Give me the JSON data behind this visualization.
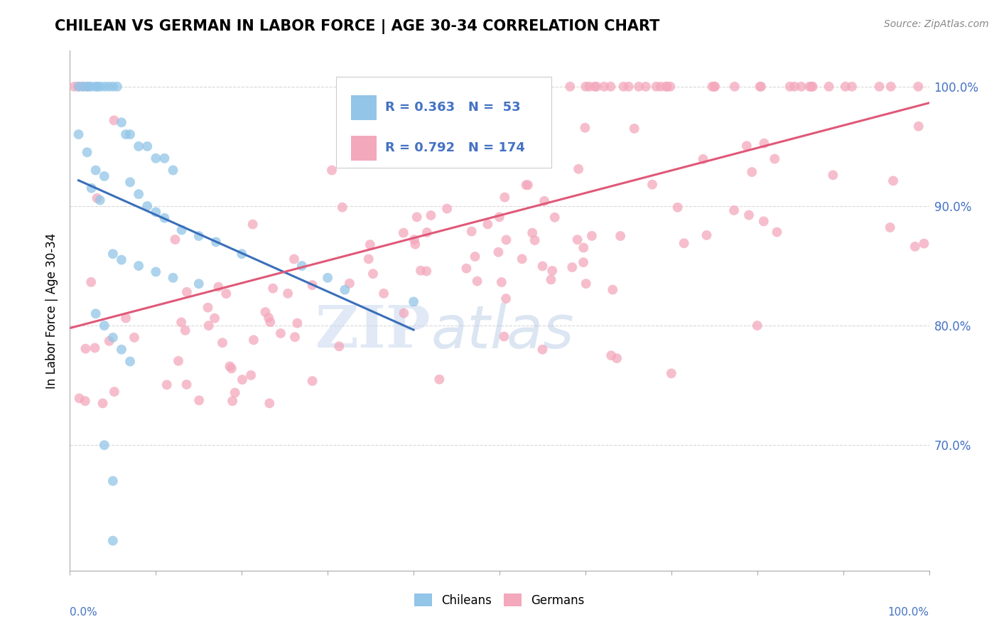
{
  "title": "CHILEAN VS GERMAN IN LABOR FORCE | AGE 30-34 CORRELATION CHART",
  "source": "Source: ZipAtlas.com",
  "ylabel": "In Labor Force | Age 30-34",
  "xlim": [
    0,
    1
  ],
  "ylim": [
    0.595,
    1.03
  ],
  "yticks": [
    0.7,
    0.8,
    0.9,
    1.0
  ],
  "ytick_labels": [
    "70.0%",
    "80.0%",
    "90.0%",
    "100.0%"
  ],
  "chilean_color": "#92C5E8",
  "german_color": "#F4A8BC",
  "chilean_line_color": "#3A6FBA",
  "german_line_color": "#E05878",
  "legend_R_chilean": "R = 0.363",
  "legend_N_chilean": "N =  53",
  "legend_R_german": "R = 0.792",
  "legend_N_german": "N = 174",
  "background_color": "#ffffff",
  "right_tick_color": "#4472C4",
  "grid_color": "#D8D8D8",
  "title_fontsize": 15,
  "source_fontsize": 10,
  "legend_fontsize": 13,
  "scatter_size": 100,
  "scatter_alpha": 0.75
}
